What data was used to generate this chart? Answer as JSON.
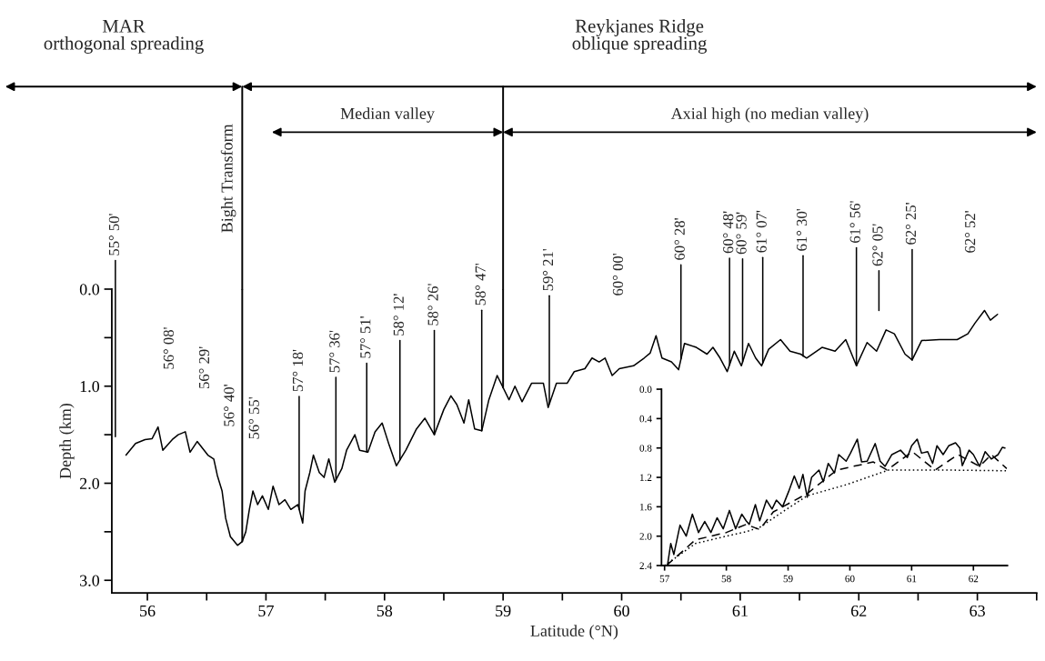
{
  "chart_data": [
    {
      "type": "line",
      "xlabel": "Latitude (°N)",
      "ylabel": "Depth (km)",
      "xlim": [
        55.7,
        63.5
      ],
      "ylim": [
        3.13,
        0.0
      ],
      "xticks": [
        56,
        {
          "value": 56.5,
          "label": null
        },
        57,
        {
          "value": 57.5,
          "label": null
        },
        58,
        {
          "value": 58.5,
          "label": null
        },
        59,
        {
          "value": 59.5,
          "label": null
        },
        60,
        {
          "value": 60.5,
          "label": null
        },
        61,
        {
          "value": 61.5,
          "label": null
        },
        62,
        {
          "value": 62.5,
          "label": null
        },
        63,
        {
          "value": 63.5,
          "label": null
        }
      ],
      "yticks": [
        {
          "value": 0.0,
          "label": "0.0"
        },
        {
          "value": 0.5,
          "label": null
        },
        {
          "value": 1.0,
          "label": "1.0"
        },
        {
          "value": 1.5,
          "label": null
        },
        {
          "value": 2.0,
          "label": "2.0"
        },
        {
          "value": 2.5,
          "label": null
        },
        {
          "value": 3.0,
          "label": "3.0"
        }
      ],
      "series": [
        {
          "color": "#000000",
          "line_style": "solid",
          "x": [
            55.82,
            55.9,
            55.98,
            56.04,
            56.09,
            56.13,
            56.21,
            56.26,
            56.32,
            56.36,
            56.42,
            56.51,
            56.56,
            56.59,
            56.63,
            56.66,
            56.7,
            56.76,
            56.8,
            56.83,
            56.86,
            56.89,
            56.93,
            56.97,
            57.02,
            57.06,
            57.11,
            57.16,
            57.21,
            57.27,
            57.31,
            57.33,
            57.37,
            57.4,
            57.45,
            57.49,
            57.53,
            57.58,
            57.64,
            57.68,
            57.75,
            57.79,
            57.86,
            57.92,
            57.98,
            58.04,
            58.1,
            58.18,
            58.27,
            58.34,
            58.42,
            58.5,
            58.56,
            58.61,
            58.67,
            58.71,
            58.76,
            58.82,
            58.88,
            58.95,
            59.05,
            59.1,
            59.16,
            59.24,
            59.34,
            59.38,
            59.45,
            59.54,
            59.6,
            59.69,
            59.75,
            59.81,
            59.86,
            59.92,
            59.98,
            60.1,
            60.19,
            60.24,
            60.29,
            60.34,
            60.42,
            60.48,
            60.53,
            60.63,
            60.72,
            60.77,
            60.83,
            60.89,
            60.95,
            61.01,
            61.07,
            61.13,
            61.18,
            61.24,
            61.34,
            61.42,
            61.51,
            61.56,
            61.69,
            61.8,
            61.89,
            61.98,
            62.07,
            62.15,
            62.23,
            62.3,
            62.39,
            62.45,
            62.53,
            62.68,
            62.83,
            62.92,
            62.98,
            63.06,
            63.11,
            63.17
          ],
          "values": [
            1.71,
            1.59,
            1.55,
            1.54,
            1.42,
            1.66,
            1.55,
            1.5,
            1.47,
            1.68,
            1.57,
            1.71,
            1.75,
            1.92,
            2.08,
            2.36,
            2.55,
            2.64,
            2.6,
            2.5,
            2.27,
            2.08,
            2.22,
            2.13,
            2.27,
            2.03,
            2.22,
            2.17,
            2.27,
            2.22,
            2.41,
            2.08,
            1.89,
            1.71,
            1.89,
            1.94,
            1.75,
            1.99,
            1.85,
            1.66,
            1.5,
            1.66,
            1.68,
            1.47,
            1.38,
            1.61,
            1.82,
            1.66,
            1.44,
            1.33,
            1.5,
            1.24,
            1.1,
            1.19,
            1.38,
            1.14,
            1.44,
            1.46,
            1.14,
            0.89,
            1.14,
            1.0,
            1.16,
            0.97,
            0.97,
            1.22,
            0.97,
            0.97,
            0.85,
            0.82,
            0.71,
            0.75,
            0.71,
            0.89,
            0.82,
            0.79,
            0.71,
            0.66,
            0.48,
            0.71,
            0.75,
            0.83,
            0.56,
            0.6,
            0.67,
            0.6,
            0.71,
            0.85,
            0.64,
            0.79,
            0.56,
            0.71,
            0.79,
            0.62,
            0.52,
            0.64,
            0.67,
            0.71,
            0.6,
            0.64,
            0.52,
            0.79,
            0.55,
            0.64,
            0.42,
            0.46,
            0.67,
            0.73,
            0.53,
            0.52,
            0.52,
            0.46,
            0.35,
            0.22,
            0.32,
            0.26
          ]
        }
      ],
      "ref_lines": [
        {
          "axis": "x",
          "value": 56.8,
          "label": "Bight Transform",
          "color": "#000000"
        },
        {
          "axis": "x",
          "value": 59.0,
          "color": "#000000"
        }
      ],
      "annotations": [
        "MAR\northogonal spreading",
        "Reykjanes Ridge\noblique spreading",
        "Median valley",
        "Axial high (no median valley)",
        "55° 50'",
        "56° 08'",
        "56° 29'",
        "56° 40'",
        "56° 55'",
        {
          "text": "57° 18'",
          "x": 57.28,
          "y": 2.27
        },
        {
          "text": "57° 36'",
          "x": 57.59,
          "y": 1.97
        },
        {
          "text": "57° 51'",
          "x": 57.85,
          "y": 1.68
        },
        {
          "text": "58° 12'",
          "x": 58.13,
          "y": 1.76
        },
        {
          "text": "58° 26'",
          "x": 58.42,
          "y": 1.5
        },
        {
          "text": "58° 47'",
          "x": 58.82,
          "y": 1.46
        },
        {
          "text": "59° 21'",
          "x": 59.39,
          "y": 1.18
        },
        "60° 00'",
        {
          "text": "60° 28'",
          "x": 60.5,
          "y": 0.72
        },
        {
          "text": "60° 48'",
          "x": 60.91,
          "y": 0.78
        },
        {
          "text": "60° 59'",
          "x": 61.02,
          "y": 0.75
        },
        {
          "text": "61° 07'",
          "x": 61.19,
          "y": 0.76
        },
        {
          "text": "61° 30'",
          "x": 61.53,
          "y": 0.69
        },
        {
          "text": "61° 56'",
          "x": 61.98,
          "y": 0.79
        },
        "62° 05'",
        {
          "text": "62° 25'",
          "x": 62.45,
          "y": 0.73
        },
        "62° 52'"
      ]
    },
    {
      "type": "line",
      "xlim": [
        56.95,
        62.55
      ],
      "ylim": [
        2.4,
        0.0
      ],
      "xticks": [
        57,
        58,
        59,
        60,
        61,
        62
      ],
      "yticks": [
        {
          "value": 0.0,
          "label": "0.0"
        },
        {
          "value": 0.4,
          "label": "0.4"
        },
        {
          "value": 0.8,
          "label": "0.8"
        },
        {
          "value": 1.2,
          "label": "1.2"
        },
        {
          "value": 1.6,
          "label": "1.6"
        },
        {
          "value": 2.0,
          "label": "2.0"
        },
        {
          "value": 2.4,
          "label": "2.4"
        }
      ],
      "series": [
        {
          "color": "#000000",
          "line_style": "solid",
          "x": [
            57.05,
            57.1,
            57.15,
            57.25,
            57.35,
            57.45,
            57.55,
            57.65,
            57.75,
            57.85,
            57.95,
            58.05,
            58.15,
            58.25,
            58.32,
            58.37,
            58.47,
            58.54,
            58.65,
            58.74,
            58.81,
            58.91,
            59.01,
            59.1,
            59.18,
            59.24,
            59.31,
            59.38,
            59.5,
            59.57,
            59.65,
            59.75,
            59.82,
            59.94,
            60.01,
            60.12,
            60.19,
            60.28,
            60.41,
            60.49,
            60.57,
            60.68,
            60.82,
            60.93,
            61.0,
            61.09,
            61.16,
            61.26,
            61.34,
            61.41,
            61.51,
            61.6,
            61.71,
            61.78,
            61.82,
            61.93,
            62.0,
            62.1,
            62.19,
            62.29,
            62.4,
            62.47,
            62.51
          ],
          "values": [
            2.38,
            2.1,
            2.25,
            1.85,
            2.0,
            1.7,
            1.95,
            1.8,
            1.95,
            1.75,
            1.9,
            1.65,
            1.9,
            1.7,
            1.79,
            1.84,
            1.57,
            1.79,
            1.51,
            1.63,
            1.51,
            1.6,
            1.39,
            1.18,
            1.35,
            1.16,
            1.47,
            1.2,
            1.1,
            1.26,
            1.01,
            1.14,
            0.89,
            0.98,
            0.87,
            0.68,
            0.99,
            0.98,
            0.74,
            0.98,
            1.05,
            0.89,
            0.83,
            0.93,
            0.77,
            0.68,
            0.87,
            0.85,
            1.01,
            0.77,
            0.89,
            0.77,
            0.73,
            0.8,
            1.04,
            0.83,
            0.89,
            1.05,
            0.85,
            0.95,
            0.89,
            0.79,
            0.8
          ]
        },
        {
          "color": "#000000",
          "line_style": "dashed",
          "x": [
            57.03,
            57.5,
            58.0,
            58.32,
            58.54,
            58.76,
            59.31,
            59.79,
            60.38,
            60.6,
            61.01,
            61.38,
            61.75,
            62.1,
            62.29,
            62.54
          ],
          "values": [
            2.4,
            2.05,
            1.95,
            1.84,
            1.91,
            1.67,
            1.42,
            1.1,
            0.99,
            1.1,
            0.85,
            1.1,
            0.89,
            1.05,
            0.89,
            1.08
          ]
        },
        {
          "color": "#000000",
          "line_style": "dotted",
          "x": [
            57.0,
            57.5,
            58.0,
            58.32,
            58.54,
            58.91,
            59.31,
            59.94,
            60.63,
            61.51,
            62.54
          ],
          "values": [
            2.4,
            2.1,
            2.0,
            1.94,
            1.88,
            1.67,
            1.45,
            1.3,
            1.1,
            1.1,
            1.11
          ]
        }
      ]
    }
  ]
}
